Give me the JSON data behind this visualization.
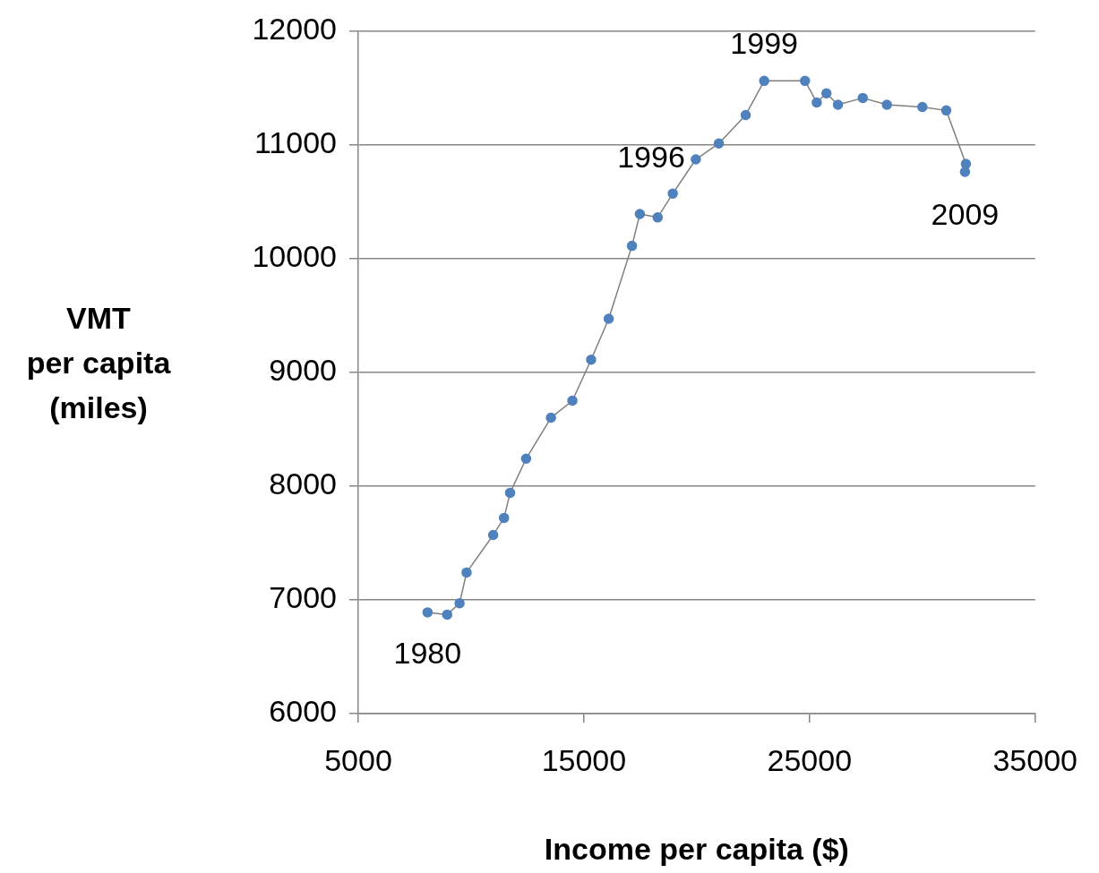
{
  "chart_data": {
    "type": "line",
    "xlabel": "Income per capita ($)",
    "ylabel": "VMT\nper capita\n(miles)",
    "x": [
      8070,
      8940,
      9490,
      9800,
      10980,
      11460,
      11730,
      12440,
      13540,
      14490,
      15320,
      16100,
      17130,
      17480,
      18270,
      18940,
      19960,
      20980,
      22170,
      22990,
      24800,
      25320,
      25750,
      26260,
      27360,
      28430,
      30000,
      31060,
      31930,
      31890
    ],
    "series": [
      {
        "color": "#4f81bd",
        "values": [
          6890,
          6870,
          6970,
          7240,
          7570,
          7720,
          7940,
          8240,
          8600,
          8750,
          9110,
          9470,
          10110,
          10390,
          10360,
          10570,
          10870,
          11010,
          11260,
          11560,
          11560,
          11370,
          11450,
          11350,
          11410,
          11350,
          11330,
          11300,
          10830,
          10760
        ]
      }
    ],
    "xlim": [
      5000,
      35000
    ],
    "xticks": [
      5000,
      15000,
      25000,
      35000
    ],
    "ylim": [
      6000,
      12000
    ],
    "yticks": [
      6000,
      7000,
      8000,
      9000,
      10000,
      11000,
      12000
    ],
    "grid": "y",
    "legend": false,
    "marker": "circle",
    "line_style": "solid",
    "annotations": [
      {
        "text": "1980",
        "x": 8070,
        "y": 6890
      },
      {
        "text": "1996",
        "x": 19960,
        "y": 10870
      },
      {
        "text": "1999",
        "x": 22990,
        "y": 11560
      },
      {
        "text": "2009",
        "x": 31890,
        "y": 10760
      }
    ]
  }
}
